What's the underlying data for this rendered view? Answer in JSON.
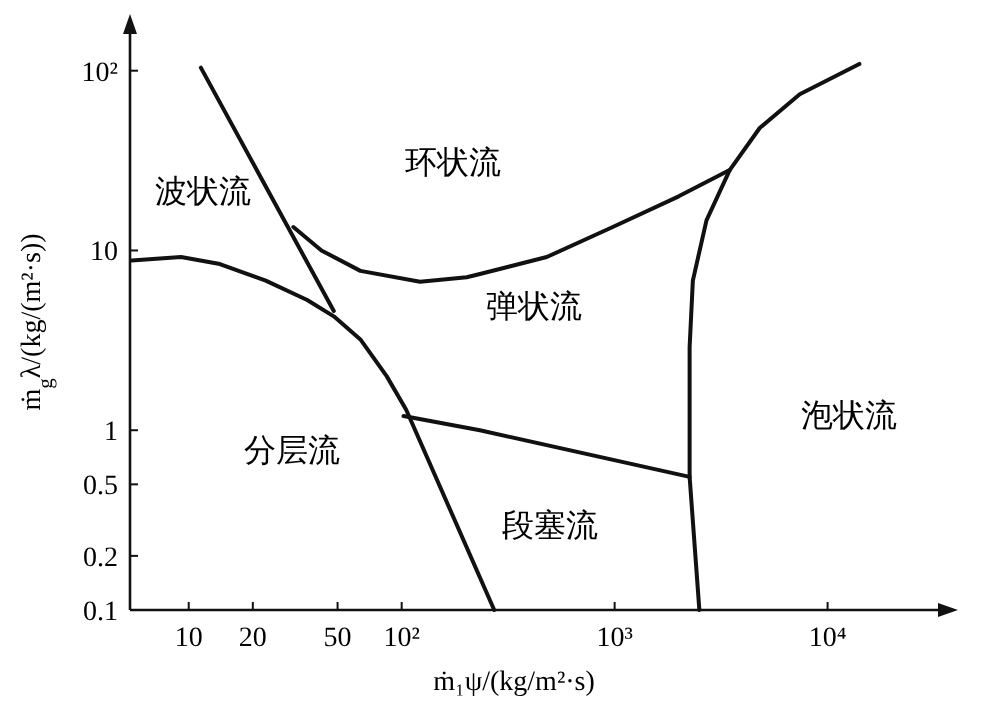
{
  "chart_data": {
    "type": "line",
    "xlabel": "ṁ₁ψ/(kg/m²·s)",
    "ylabel": "ṁ$_{g}$λ/(kg/(m²·s))",
    "log": "xy",
    "grid": false,
    "marker": "none",
    "line_style": "solid",
    "xlim": [
      5.3,
      33000
    ],
    "ylim": [
      0.1,
      160
    ],
    "xticks": [
      10,
      20,
      50,
      {
        "value": 100,
        "label": "10²"
      },
      {
        "value": 1000,
        "label": "10³"
      },
      {
        "value": 10000,
        "label": "10⁴"
      }
    ],
    "yticks": [
      0.1,
      0.2,
      0.5,
      1,
      10,
      {
        "value": 100,
        "label": "10²"
      }
    ],
    "series": [
      {
        "color": "#111111",
        "x": [
          5.4,
          9.2,
          14,
          23,
          36,
          48,
          64,
          85,
          105,
          272
        ],
        "values": [
          8.8,
          9.2,
          8.4,
          6.8,
          5.3,
          4.3,
          3.2,
          2.0,
          1.3,
          0.1
        ]
      },
      {
        "color": "#111111",
        "x": [
          11.4,
          48
        ],
        "values": [
          104,
          4.6
        ]
      },
      {
        "color": "#111111",
        "x": [
          31,
          42,
          64,
          122,
          202,
          233,
          480,
          980,
          2000,
          3470
        ],
        "values": [
          13.5,
          10,
          7.7,
          6.7,
          7.1,
          7.4,
          9.2,
          13.5,
          20,
          28
        ]
      },
      {
        "color": "#111111",
        "x": [
          14100,
          7400,
          4800,
          3470,
          2700,
          2330,
          2250,
          2250,
          2500
        ],
        "values": [
          109,
          74,
          48,
          28,
          14.7,
          6.8,
          2.9,
          0.55,
          0.1
        ]
      },
      {
        "color": "#111111",
        "x": [
          102,
          233,
          2250
        ],
        "values": [
          1.2,
          1.0,
          0.55
        ]
      }
    ],
    "annotations": [
      "波状流",
      "环状流",
      "弹状流",
      "分层流",
      "段塞流",
      "泡状流"
    ]
  }
}
